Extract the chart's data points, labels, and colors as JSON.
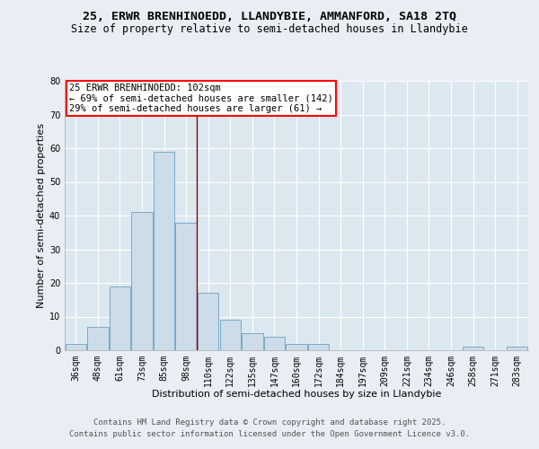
{
  "title": "25, ERWR BRENHINOEDD, LLANDYBIE, AMMANFORD, SA18 2TQ",
  "subtitle": "Size of property relative to semi-detached houses in Llandybie",
  "xlabel": "Distribution of semi-detached houses by size in Llandybie",
  "ylabel": "Number of semi-detached properties",
  "categories": [
    "36sqm",
    "48sqm",
    "61sqm",
    "73sqm",
    "85sqm",
    "98sqm",
    "110sqm",
    "122sqm",
    "135sqm",
    "147sqm",
    "160sqm",
    "172sqm",
    "184sqm",
    "197sqm",
    "209sqm",
    "221sqm",
    "234sqm",
    "246sqm",
    "258sqm",
    "271sqm",
    "283sqm"
  ],
  "values": [
    2,
    7,
    19,
    41,
    59,
    38,
    17,
    9,
    5,
    4,
    2,
    2,
    0,
    0,
    0,
    0,
    0,
    0,
    1,
    0,
    1
  ],
  "bar_color": "#ccdce8",
  "bar_edge_color": "#7aaac8",
  "property_line_x": 5.5,
  "annotation_text_line1": "25 ERWR BRENHINOEDD: 102sqm",
  "annotation_text_line2": "← 69% of semi-detached houses are smaller (142)",
  "annotation_text_line3": "29% of semi-detached houses are larger (61) →",
  "ylim": [
    0,
    80
  ],
  "yticks": [
    0,
    10,
    20,
    30,
    40,
    50,
    60,
    70,
    80
  ],
  "footer_line1": "Contains HM Land Registry data © Crown copyright and database right 2025.",
  "footer_line2": "Contains public sector information licensed under the Open Government Licence v3.0.",
  "background_color": "#e8eef4",
  "plot_bg_color": "#dce8f0",
  "grid_color": "#ffffff",
  "title_fontsize": 9.5,
  "subtitle_fontsize": 8.5,
  "axis_label_fontsize": 8,
  "tick_fontsize": 7,
  "annotation_fontsize": 7.5,
  "footer_fontsize": 6.5
}
